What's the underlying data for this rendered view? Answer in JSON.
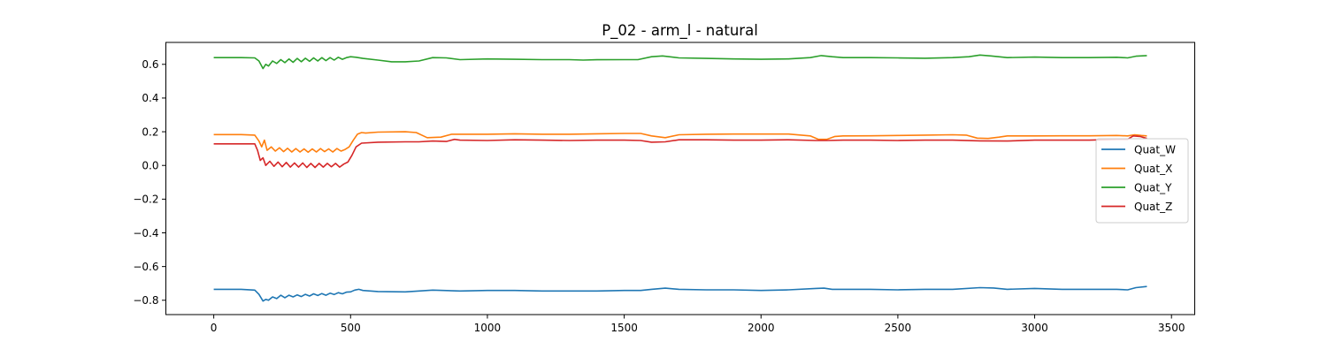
{
  "chart_data": {
    "type": "line",
    "title": "P_02 - arm_l - natural",
    "xlabel": "",
    "ylabel": "",
    "xlim": [
      -175,
      3585
    ],
    "ylim": [
      -0.885,
      0.73
    ],
    "x_ticks": [
      0,
      500,
      1000,
      1500,
      2000,
      2500,
      3000,
      3500
    ],
    "x_tick_labels": [
      "0",
      "500",
      "1000",
      "1500",
      "2000",
      "2500",
      "3000",
      "3500"
    ],
    "y_ticks": [
      -0.8,
      -0.6,
      -0.4,
      -0.2,
      0.0,
      0.2,
      0.4,
      0.6
    ],
    "y_tick_labels": [
      "−0.8",
      "−0.6",
      "−0.4",
      "−0.2",
      "0.0",
      "0.2",
      "0.4",
      "0.6"
    ],
    "grid": false,
    "legend_position": "center-right",
    "series": [
      {
        "name": "Quat_W",
        "color": "#1f77b4",
        "points": [
          [
            0,
            -0.735
          ],
          [
            50,
            -0.735
          ],
          [
            100,
            -0.735
          ],
          [
            150,
            -0.74
          ],
          [
            165,
            -0.765
          ],
          [
            180,
            -0.805
          ],
          [
            190,
            -0.795
          ],
          [
            200,
            -0.8
          ],
          [
            215,
            -0.78
          ],
          [
            230,
            -0.79
          ],
          [
            245,
            -0.77
          ],
          [
            260,
            -0.785
          ],
          [
            275,
            -0.77
          ],
          [
            290,
            -0.78
          ],
          [
            305,
            -0.768
          ],
          [
            320,
            -0.778
          ],
          [
            335,
            -0.765
          ],
          [
            350,
            -0.775
          ],
          [
            365,
            -0.762
          ],
          [
            380,
            -0.772
          ],
          [
            395,
            -0.76
          ],
          [
            410,
            -0.77
          ],
          [
            425,
            -0.758
          ],
          [
            440,
            -0.766
          ],
          [
            455,
            -0.755
          ],
          [
            470,
            -0.762
          ],
          [
            485,
            -0.752
          ],
          [
            500,
            -0.75
          ],
          [
            515,
            -0.74
          ],
          [
            530,
            -0.735
          ],
          [
            545,
            -0.742
          ],
          [
            600,
            -0.748
          ],
          [
            700,
            -0.75
          ],
          [
            800,
            -0.74
          ],
          [
            900,
            -0.745
          ],
          [
            1000,
            -0.742
          ],
          [
            1100,
            -0.742
          ],
          [
            1200,
            -0.745
          ],
          [
            1300,
            -0.745
          ],
          [
            1400,
            -0.745
          ],
          [
            1500,
            -0.742
          ],
          [
            1560,
            -0.742
          ],
          [
            1600,
            -0.735
          ],
          [
            1650,
            -0.728
          ],
          [
            1700,
            -0.735
          ],
          [
            1800,
            -0.738
          ],
          [
            1900,
            -0.738
          ],
          [
            2000,
            -0.742
          ],
          [
            2100,
            -0.738
          ],
          [
            2200,
            -0.73
          ],
          [
            2230,
            -0.728
          ],
          [
            2260,
            -0.735
          ],
          [
            2400,
            -0.735
          ],
          [
            2500,
            -0.738
          ],
          [
            2600,
            -0.735
          ],
          [
            2700,
            -0.735
          ],
          [
            2800,
            -0.725
          ],
          [
            2850,
            -0.727
          ],
          [
            2900,
            -0.735
          ],
          [
            3000,
            -0.73
          ],
          [
            3100,
            -0.735
          ],
          [
            3200,
            -0.735
          ],
          [
            3300,
            -0.735
          ],
          [
            3340,
            -0.738
          ],
          [
            3370,
            -0.725
          ],
          [
            3410,
            -0.718
          ]
        ]
      },
      {
        "name": "Quat_X",
        "color": "#ff7f0e",
        "points": [
          [
            0,
            0.183
          ],
          [
            50,
            0.183
          ],
          [
            100,
            0.183
          ],
          [
            150,
            0.18
          ],
          [
            165,
            0.145
          ],
          [
            175,
            0.11
          ],
          [
            185,
            0.15
          ],
          [
            195,
            0.09
          ],
          [
            210,
            0.11
          ],
          [
            225,
            0.085
          ],
          [
            240,
            0.105
          ],
          [
            255,
            0.082
          ],
          [
            270,
            0.102
          ],
          [
            285,
            0.08
          ],
          [
            300,
            0.1
          ],
          [
            315,
            0.08
          ],
          [
            330,
            0.098
          ],
          [
            345,
            0.078
          ],
          [
            360,
            0.098
          ],
          [
            375,
            0.08
          ],
          [
            390,
            0.1
          ],
          [
            405,
            0.082
          ],
          [
            420,
            0.098
          ],
          [
            435,
            0.08
          ],
          [
            450,
            0.1
          ],
          [
            465,
            0.085
          ],
          [
            480,
            0.095
          ],
          [
            495,
            0.11
          ],
          [
            510,
            0.15
          ],
          [
            525,
            0.185
          ],
          [
            540,
            0.195
          ],
          [
            555,
            0.192
          ],
          [
            600,
            0.198
          ],
          [
            700,
            0.2
          ],
          [
            740,
            0.195
          ],
          [
            780,
            0.165
          ],
          [
            830,
            0.168
          ],
          [
            870,
            0.185
          ],
          [
            1000,
            0.185
          ],
          [
            1100,
            0.188
          ],
          [
            1200,
            0.185
          ],
          [
            1300,
            0.185
          ],
          [
            1400,
            0.188
          ],
          [
            1500,
            0.19
          ],
          [
            1560,
            0.19
          ],
          [
            1600,
            0.175
          ],
          [
            1650,
            0.165
          ],
          [
            1700,
            0.182
          ],
          [
            1800,
            0.185
          ],
          [
            1900,
            0.186
          ],
          [
            2000,
            0.186
          ],
          [
            2100,
            0.186
          ],
          [
            2180,
            0.175
          ],
          [
            2210,
            0.155
          ],
          [
            2240,
            0.155
          ],
          [
            2270,
            0.172
          ],
          [
            2300,
            0.175
          ],
          [
            2400,
            0.176
          ],
          [
            2500,
            0.178
          ],
          [
            2600,
            0.18
          ],
          [
            2700,
            0.182
          ],
          [
            2750,
            0.18
          ],
          [
            2790,
            0.162
          ],
          [
            2830,
            0.16
          ],
          [
            2870,
            0.168
          ],
          [
            2900,
            0.175
          ],
          [
            3000,
            0.175
          ],
          [
            3100,
            0.176
          ],
          [
            3200,
            0.176
          ],
          [
            3300,
            0.178
          ],
          [
            3340,
            0.175
          ],
          [
            3365,
            0.182
          ],
          [
            3390,
            0.178
          ],
          [
            3410,
            0.175
          ]
        ]
      },
      {
        "name": "Quat_Y",
        "color": "#2ca02c",
        "points": [
          [
            0,
            0.64
          ],
          [
            50,
            0.64
          ],
          [
            100,
            0.64
          ],
          [
            150,
            0.638
          ],
          [
            165,
            0.62
          ],
          [
            180,
            0.575
          ],
          [
            190,
            0.6
          ],
          [
            200,
            0.59
          ],
          [
            215,
            0.62
          ],
          [
            230,
            0.605
          ],
          [
            245,
            0.628
          ],
          [
            260,
            0.61
          ],
          [
            275,
            0.632
          ],
          [
            290,
            0.612
          ],
          [
            305,
            0.635
          ],
          [
            320,
            0.615
          ],
          [
            335,
            0.636
          ],
          [
            350,
            0.618
          ],
          [
            365,
            0.638
          ],
          [
            380,
            0.62
          ],
          [
            395,
            0.64
          ],
          [
            410,
            0.622
          ],
          [
            425,
            0.64
          ],
          [
            440,
            0.625
          ],
          [
            455,
            0.642
          ],
          [
            470,
            0.63
          ],
          [
            485,
            0.64
          ],
          [
            500,
            0.645
          ],
          [
            520,
            0.642
          ],
          [
            545,
            0.635
          ],
          [
            600,
            0.625
          ],
          [
            650,
            0.615
          ],
          [
            700,
            0.615
          ],
          [
            750,
            0.62
          ],
          [
            800,
            0.64
          ],
          [
            850,
            0.638
          ],
          [
            900,
            0.628
          ],
          [
            1000,
            0.632
          ],
          [
            1100,
            0.63
          ],
          [
            1200,
            0.628
          ],
          [
            1300,
            0.628
          ],
          [
            1350,
            0.625
          ],
          [
            1400,
            0.627
          ],
          [
            1500,
            0.628
          ],
          [
            1550,
            0.628
          ],
          [
            1600,
            0.645
          ],
          [
            1640,
            0.65
          ],
          [
            1700,
            0.638
          ],
          [
            1800,
            0.635
          ],
          [
            1900,
            0.632
          ],
          [
            2000,
            0.63
          ],
          [
            2100,
            0.632
          ],
          [
            2180,
            0.64
          ],
          [
            2220,
            0.652
          ],
          [
            2260,
            0.645
          ],
          [
            2300,
            0.64
          ],
          [
            2400,
            0.64
          ],
          [
            2500,
            0.638
          ],
          [
            2600,
            0.636
          ],
          [
            2700,
            0.64
          ],
          [
            2760,
            0.645
          ],
          [
            2800,
            0.655
          ],
          [
            2840,
            0.65
          ],
          [
            2900,
            0.64
          ],
          [
            3000,
            0.643
          ],
          [
            3100,
            0.64
          ],
          [
            3200,
            0.64
          ],
          [
            3300,
            0.642
          ],
          [
            3340,
            0.638
          ],
          [
            3370,
            0.648
          ],
          [
            3410,
            0.652
          ]
        ]
      },
      {
        "name": "Quat_Z",
        "color": "#d62728",
        "points": [
          [
            0,
            0.128
          ],
          [
            50,
            0.128
          ],
          [
            100,
            0.128
          ],
          [
            150,
            0.128
          ],
          [
            160,
            0.09
          ],
          [
            170,
            0.03
          ],
          [
            180,
            0.045
          ],
          [
            190,
            0.0
          ],
          [
            205,
            0.025
          ],
          [
            220,
            -0.005
          ],
          [
            235,
            0.02
          ],
          [
            250,
            -0.008
          ],
          [
            265,
            0.018
          ],
          [
            280,
            -0.01
          ],
          [
            295,
            0.015
          ],
          [
            310,
            -0.01
          ],
          [
            325,
            0.015
          ],
          [
            340,
            -0.012
          ],
          [
            355,
            0.012
          ],
          [
            370,
            -0.012
          ],
          [
            385,
            0.012
          ],
          [
            400,
            -0.01
          ],
          [
            415,
            0.012
          ],
          [
            430,
            -0.008
          ],
          [
            445,
            0.012
          ],
          [
            460,
            -0.01
          ],
          [
            475,
            0.008
          ],
          [
            490,
            0.02
          ],
          [
            505,
            0.06
          ],
          [
            520,
            0.11
          ],
          [
            540,
            0.132
          ],
          [
            600,
            0.138
          ],
          [
            700,
            0.14
          ],
          [
            750,
            0.14
          ],
          [
            800,
            0.145
          ],
          [
            850,
            0.142
          ],
          [
            880,
            0.155
          ],
          [
            900,
            0.15
          ],
          [
            1000,
            0.148
          ],
          [
            1100,
            0.152
          ],
          [
            1200,
            0.15
          ],
          [
            1300,
            0.148
          ],
          [
            1400,
            0.15
          ],
          [
            1500,
            0.15
          ],
          [
            1560,
            0.148
          ],
          [
            1600,
            0.138
          ],
          [
            1650,
            0.14
          ],
          [
            1700,
            0.152
          ],
          [
            1800,
            0.152
          ],
          [
            1900,
            0.15
          ],
          [
            2000,
            0.15
          ],
          [
            2100,
            0.152
          ],
          [
            2200,
            0.148
          ],
          [
            2240,
            0.148
          ],
          [
            2300,
            0.15
          ],
          [
            2400,
            0.15
          ],
          [
            2500,
            0.148
          ],
          [
            2600,
            0.15
          ],
          [
            2700,
            0.15
          ],
          [
            2800,
            0.146
          ],
          [
            2900,
            0.145
          ],
          [
            3000,
            0.15
          ],
          [
            3100,
            0.15
          ],
          [
            3200,
            0.15
          ],
          [
            3300,
            0.155
          ],
          [
            3340,
            0.155
          ],
          [
            3360,
            0.175
          ],
          [
            3385,
            0.172
          ],
          [
            3410,
            0.16
          ]
        ]
      }
    ]
  }
}
